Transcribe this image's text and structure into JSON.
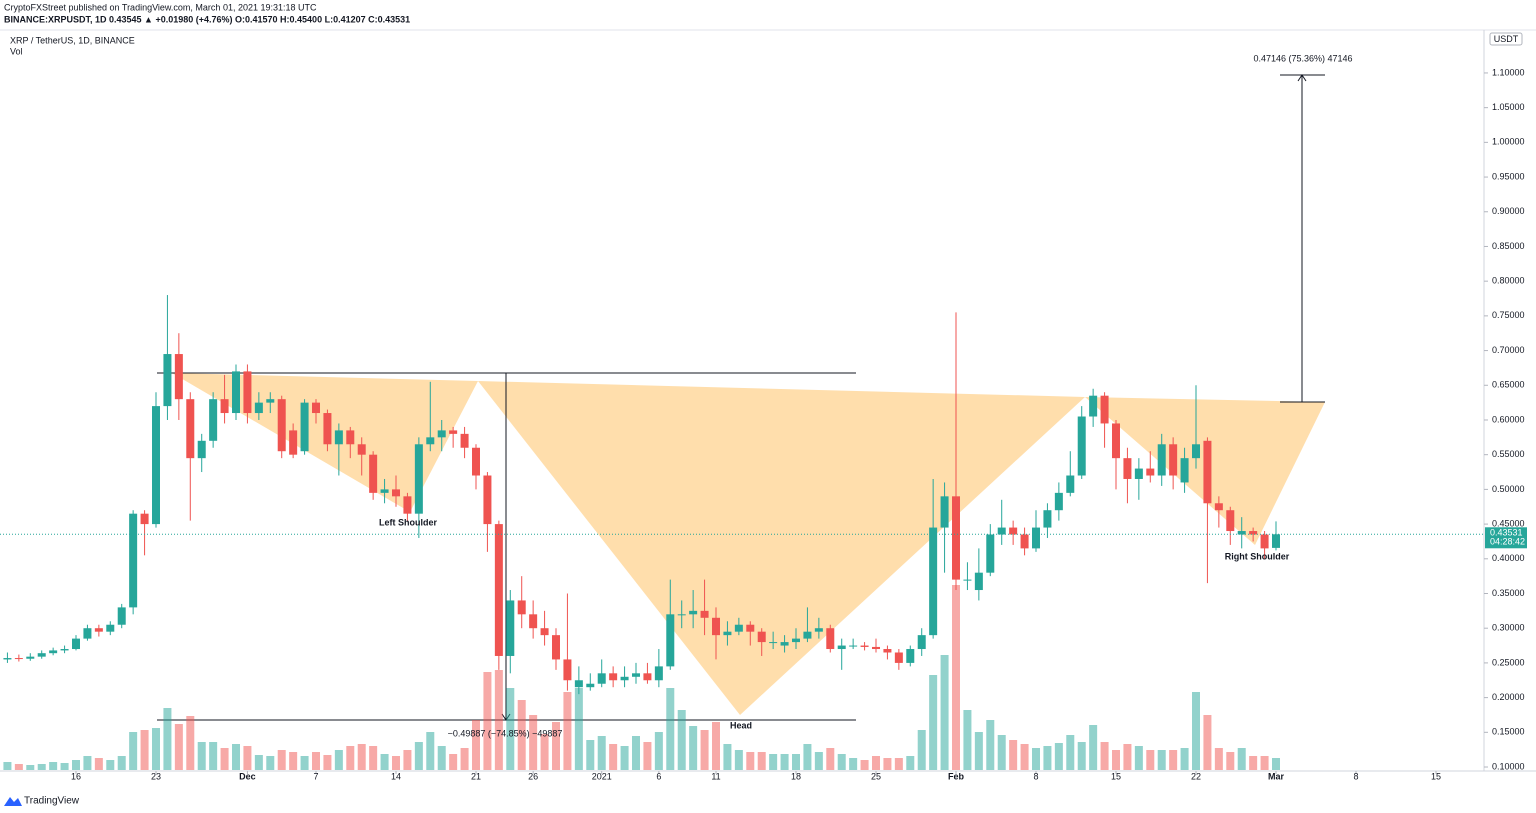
{
  "chart_data": {
    "type": "candlestick",
    "publisher": "CryptoFXStreet published on TradingView.com, March 01, 2021 19:31:18 UTC",
    "symbol_line": "BINANCE:XRPUSDT, 1D  0.43545  ▲ +0.01980 (+4.76%)  O:0.41570  H:0.45400  L:0.41207  C:0.43531",
    "title": "XRP / TetherUS, 1D, BINANCE",
    "subtitle": "Vol",
    "currency": "USDT",
    "last_price_label": "0.43531",
    "countdown": "04:28:42",
    "logo": "TradingView",
    "annotations": {
      "left_shoulder": "Left Shoulder",
      "head": "Head",
      "right_shoulder": "Right Shoulder",
      "target": "0.47146 (75.36%) 47146",
      "drop": "−0.49887 (−74.85%) −49887"
    },
    "up_color": "#26a69a",
    "down_color": "#ef5350",
    "open": [
      0.255,
      0.257,
      0.256,
      0.259,
      0.264,
      0.268,
      0.27,
      0.285,
      0.3,
      0.295,
      0.305,
      0.33,
      0.465,
      0.45,
      0.62,
      0.695,
      0.63,
      0.545,
      0.57,
      0.63,
      0.61,
      0.67,
      0.61,
      0.625,
      0.63,
      0.585,
      0.555,
      0.625,
      0.61,
      0.565,
      0.585,
      0.565,
      0.55,
      0.495,
      0.5,
      0.49,
      0.465,
      0.565,
      0.575,
      0.585,
      0.58,
      0.56,
      0.52,
      0.45,
      0.26,
      0.34,
      0.32,
      0.3,
      0.29,
      0.255,
      0.215,
      0.215,
      0.22,
      0.235,
      0.225,
      0.23,
      0.235,
      0.225,
      0.245,
      0.32,
      0.32,
      0.325,
      0.315,
      0.29,
      0.295,
      0.305,
      0.295,
      0.28,
      0.275,
      0.28,
      0.285,
      0.295,
      0.3,
      0.27,
      0.275,
      0.275,
      0.273,
      0.27,
      0.265,
      0.25,
      0.27,
      0.29,
      0.445,
      0.49,
      0.37,
      0.355,
      0.38,
      0.435,
      0.445,
      0.435,
      0.415,
      0.445,
      0.47,
      0.495,
      0.52,
      0.605,
      0.635,
      0.595,
      0.545,
      0.515,
      0.53,
      0.52,
      0.565,
      0.51,
      0.545,
      0.57,
      0.48,
      0.47,
      0.435,
      0.44,
      0.435,
      0.4157
    ],
    "high": [
      0.265,
      0.262,
      0.264,
      0.268,
      0.272,
      0.275,
      0.29,
      0.305,
      0.305,
      0.31,
      0.335,
      0.47,
      0.47,
      0.64,
      0.78,
      0.725,
      0.64,
      0.58,
      0.64,
      0.665,
      0.68,
      0.68,
      0.64,
      0.64,
      0.635,
      0.595,
      0.63,
      0.63,
      0.615,
      0.595,
      0.59,
      0.575,
      0.555,
      0.515,
      0.52,
      0.495,
      0.575,
      0.655,
      0.6,
      0.59,
      0.59,
      0.565,
      0.525,
      0.455,
      0.355,
      0.375,
      0.34,
      0.325,
      0.3,
      0.35,
      0.245,
      0.235,
      0.255,
      0.245,
      0.245,
      0.25,
      0.25,
      0.27,
      0.37,
      0.34,
      0.355,
      0.37,
      0.33,
      0.31,
      0.315,
      0.31,
      0.3,
      0.295,
      0.29,
      0.3,
      0.33,
      0.315,
      0.305,
      0.285,
      0.285,
      0.28,
      0.285,
      0.275,
      0.27,
      0.275,
      0.3,
      0.515,
      0.51,
      0.755,
      0.395,
      0.415,
      0.45,
      0.485,
      0.455,
      0.445,
      0.47,
      0.48,
      0.51,
      0.555,
      0.62,
      0.645,
      0.64,
      0.6,
      0.56,
      0.545,
      0.555,
      0.58,
      0.575,
      0.56,
      0.65,
      0.575,
      0.49,
      0.475,
      0.46,
      0.445,
      0.44,
      0.454
    ],
    "low": [
      0.25,
      0.252,
      0.253,
      0.256,
      0.261,
      0.264,
      0.268,
      0.282,
      0.288,
      0.29,
      0.3,
      0.32,
      0.405,
      0.445,
      0.6,
      0.6,
      0.455,
      0.525,
      0.56,
      0.595,
      0.6,
      0.595,
      0.6,
      0.61,
      0.545,
      0.545,
      0.55,
      0.595,
      0.555,
      0.52,
      0.545,
      0.52,
      0.485,
      0.48,
      0.475,
      0.455,
      0.43,
      0.555,
      0.555,
      0.56,
      0.545,
      0.5,
      0.41,
      0.24,
      0.235,
      0.3,
      0.285,
      0.275,
      0.24,
      0.21,
      0.205,
      0.21,
      0.215,
      0.215,
      0.215,
      0.22,
      0.22,
      0.215,
      0.24,
      0.3,
      0.3,
      0.29,
      0.255,
      0.275,
      0.29,
      0.275,
      0.26,
      0.27,
      0.265,
      0.27,
      0.28,
      0.285,
      0.265,
      0.24,
      0.27,
      0.268,
      0.265,
      0.255,
      0.24,
      0.245,
      0.26,
      0.285,
      0.38,
      0.355,
      0.355,
      0.34,
      0.375,
      0.42,
      0.42,
      0.405,
      0.41,
      0.43,
      0.455,
      0.49,
      0.515,
      0.59,
      0.56,
      0.5,
      0.48,
      0.485,
      0.51,
      0.505,
      0.5,
      0.495,
      0.53,
      0.365,
      0.445,
      0.42,
      0.415,
      0.425,
      0.4,
      0.41207
    ],
    "close": [
      0.257,
      0.256,
      0.259,
      0.264,
      0.268,
      0.27,
      0.285,
      0.3,
      0.295,
      0.305,
      0.33,
      0.465,
      0.45,
      0.62,
      0.695,
      0.63,
      0.545,
      0.57,
      0.63,
      0.61,
      0.67,
      0.61,
      0.625,
      0.63,
      0.555,
      0.55,
      0.625,
      0.61,
      0.565,
      0.585,
      0.565,
      0.55,
      0.495,
      0.5,
      0.49,
      0.465,
      0.565,
      0.575,
      0.585,
      0.58,
      0.56,
      0.52,
      0.45,
      0.26,
      0.34,
      0.32,
      0.3,
      0.29,
      0.255,
      0.225,
      0.225,
      0.22,
      0.235,
      0.225,
      0.23,
      0.235,
      0.225,
      0.245,
      0.32,
      0.32,
      0.325,
      0.315,
      0.29,
      0.295,
      0.305,
      0.295,
      0.28,
      0.28,
      0.28,
      0.285,
      0.295,
      0.3,
      0.27,
      0.275,
      0.275,
      0.273,
      0.27,
      0.265,
      0.25,
      0.27,
      0.29,
      0.445,
      0.49,
      0.37,
      0.37,
      0.38,
      0.435,
      0.445,
      0.435,
      0.415,
      0.445,
      0.47,
      0.495,
      0.52,
      0.605,
      0.635,
      0.595,
      0.545,
      0.515,
      0.53,
      0.52,
      0.565,
      0.52,
      0.545,
      0.565,
      0.48,
      0.47,
      0.44,
      0.44,
      0.435,
      0.415,
      0.43531
    ],
    "volume": [
      8,
      6,
      5,
      6,
      8,
      7,
      10,
      14,
      12,
      10,
      14,
      38,
      40,
      42,
      62,
      46,
      54,
      28,
      28,
      22,
      26,
      24,
      15,
      14,
      20,
      18,
      14,
      18,
      15,
      20,
      24,
      26,
      24,
      16,
      14,
      20,
      28,
      38,
      24,
      16,
      22,
      50,
      98,
      100,
      82,
      70,
      55,
      36,
      48,
      78,
      82,
      30,
      34,
      26,
      24,
      34,
      28,
      38,
      82,
      60,
      44,
      40,
      48,
      26,
      20,
      18,
      18,
      16,
      16,
      16,
      26,
      18,
      22,
      16,
      12,
      10,
      14,
      12,
      12,
      14,
      40,
      95,
      115,
      185,
      60,
      38,
      50,
      35,
      30,
      26,
      22,
      24,
      27,
      35,
      28,
      45,
      28,
      20,
      26,
      24,
      20,
      20,
      20,
      22,
      78,
      55,
      22,
      18,
      22,
      14,
      14,
      12
    ],
    "xlim": [
      -0.65,
      129.2
    ],
    "xticks": [
      {
        "value": 6,
        "label": "16"
      },
      {
        "value": 13,
        "label": "23"
      },
      {
        "value": 21,
        "label": "Dec"
      },
      {
        "value": 27,
        "label": "7"
      },
      {
        "value": 34,
        "label": "14"
      },
      {
        "value": 41,
        "label": "21"
      },
      {
        "value": 46,
        "label": "26"
      },
      {
        "value": 52,
        "label": "2021"
      },
      {
        "value": 57,
        "label": "6"
      },
      {
        "value": 62,
        "label": "11"
      },
      {
        "value": 69,
        "label": "18"
      },
      {
        "value": 76,
        "label": "25"
      },
      {
        "value": 83,
        "label": "Feb"
      },
      {
        "value": 90,
        "label": "8"
      },
      {
        "value": 97,
        "label": "15"
      },
      {
        "value": 104,
        "label": "22"
      },
      {
        "value": 111,
        "label": "Mar"
      },
      {
        "value": 118,
        "label": "8"
      },
      {
        "value": 125,
        "label": "15"
      }
    ],
    "ylim": [
      0.0957,
      1.159
    ],
    "yticks": [
      {
        "value": 0.1,
        "label": "0.10000"
      },
      {
        "value": 0.15,
        "label": "0.15000"
      },
      {
        "value": 0.2,
        "label": "0.20000"
      },
      {
        "value": 0.25,
        "label": "0.25000"
      },
      {
        "value": 0.3,
        "label": "0.30000"
      },
      {
        "value": 0.35,
        "label": "0.35000"
      },
      {
        "value": 0.4,
        "label": "0.40000"
      },
      {
        "value": 0.45,
        "label": "0.45000"
      },
      {
        "value": 0.5,
        "label": "0.50000"
      },
      {
        "value": 0.55,
        "label": "0.55000"
      },
      {
        "value": 0.6,
        "label": "0.60000"
      },
      {
        "value": 0.65,
        "label": "0.65000"
      },
      {
        "value": 0.7,
        "label": "0.70000"
      },
      {
        "value": 0.75,
        "label": "0.75000"
      },
      {
        "value": 0.8,
        "label": "0.80000"
      },
      {
        "value": 0.85,
        "label": "0.85000"
      },
      {
        "value": 0.9,
        "label": "0.90000"
      },
      {
        "value": 0.95,
        "label": "0.95000"
      },
      {
        "value": 1.0,
        "label": "1.00000"
      },
      {
        "value": 1.05,
        "label": "1.05000"
      },
      {
        "value": 1.1,
        "label": "1.10000"
      }
    ]
  }
}
